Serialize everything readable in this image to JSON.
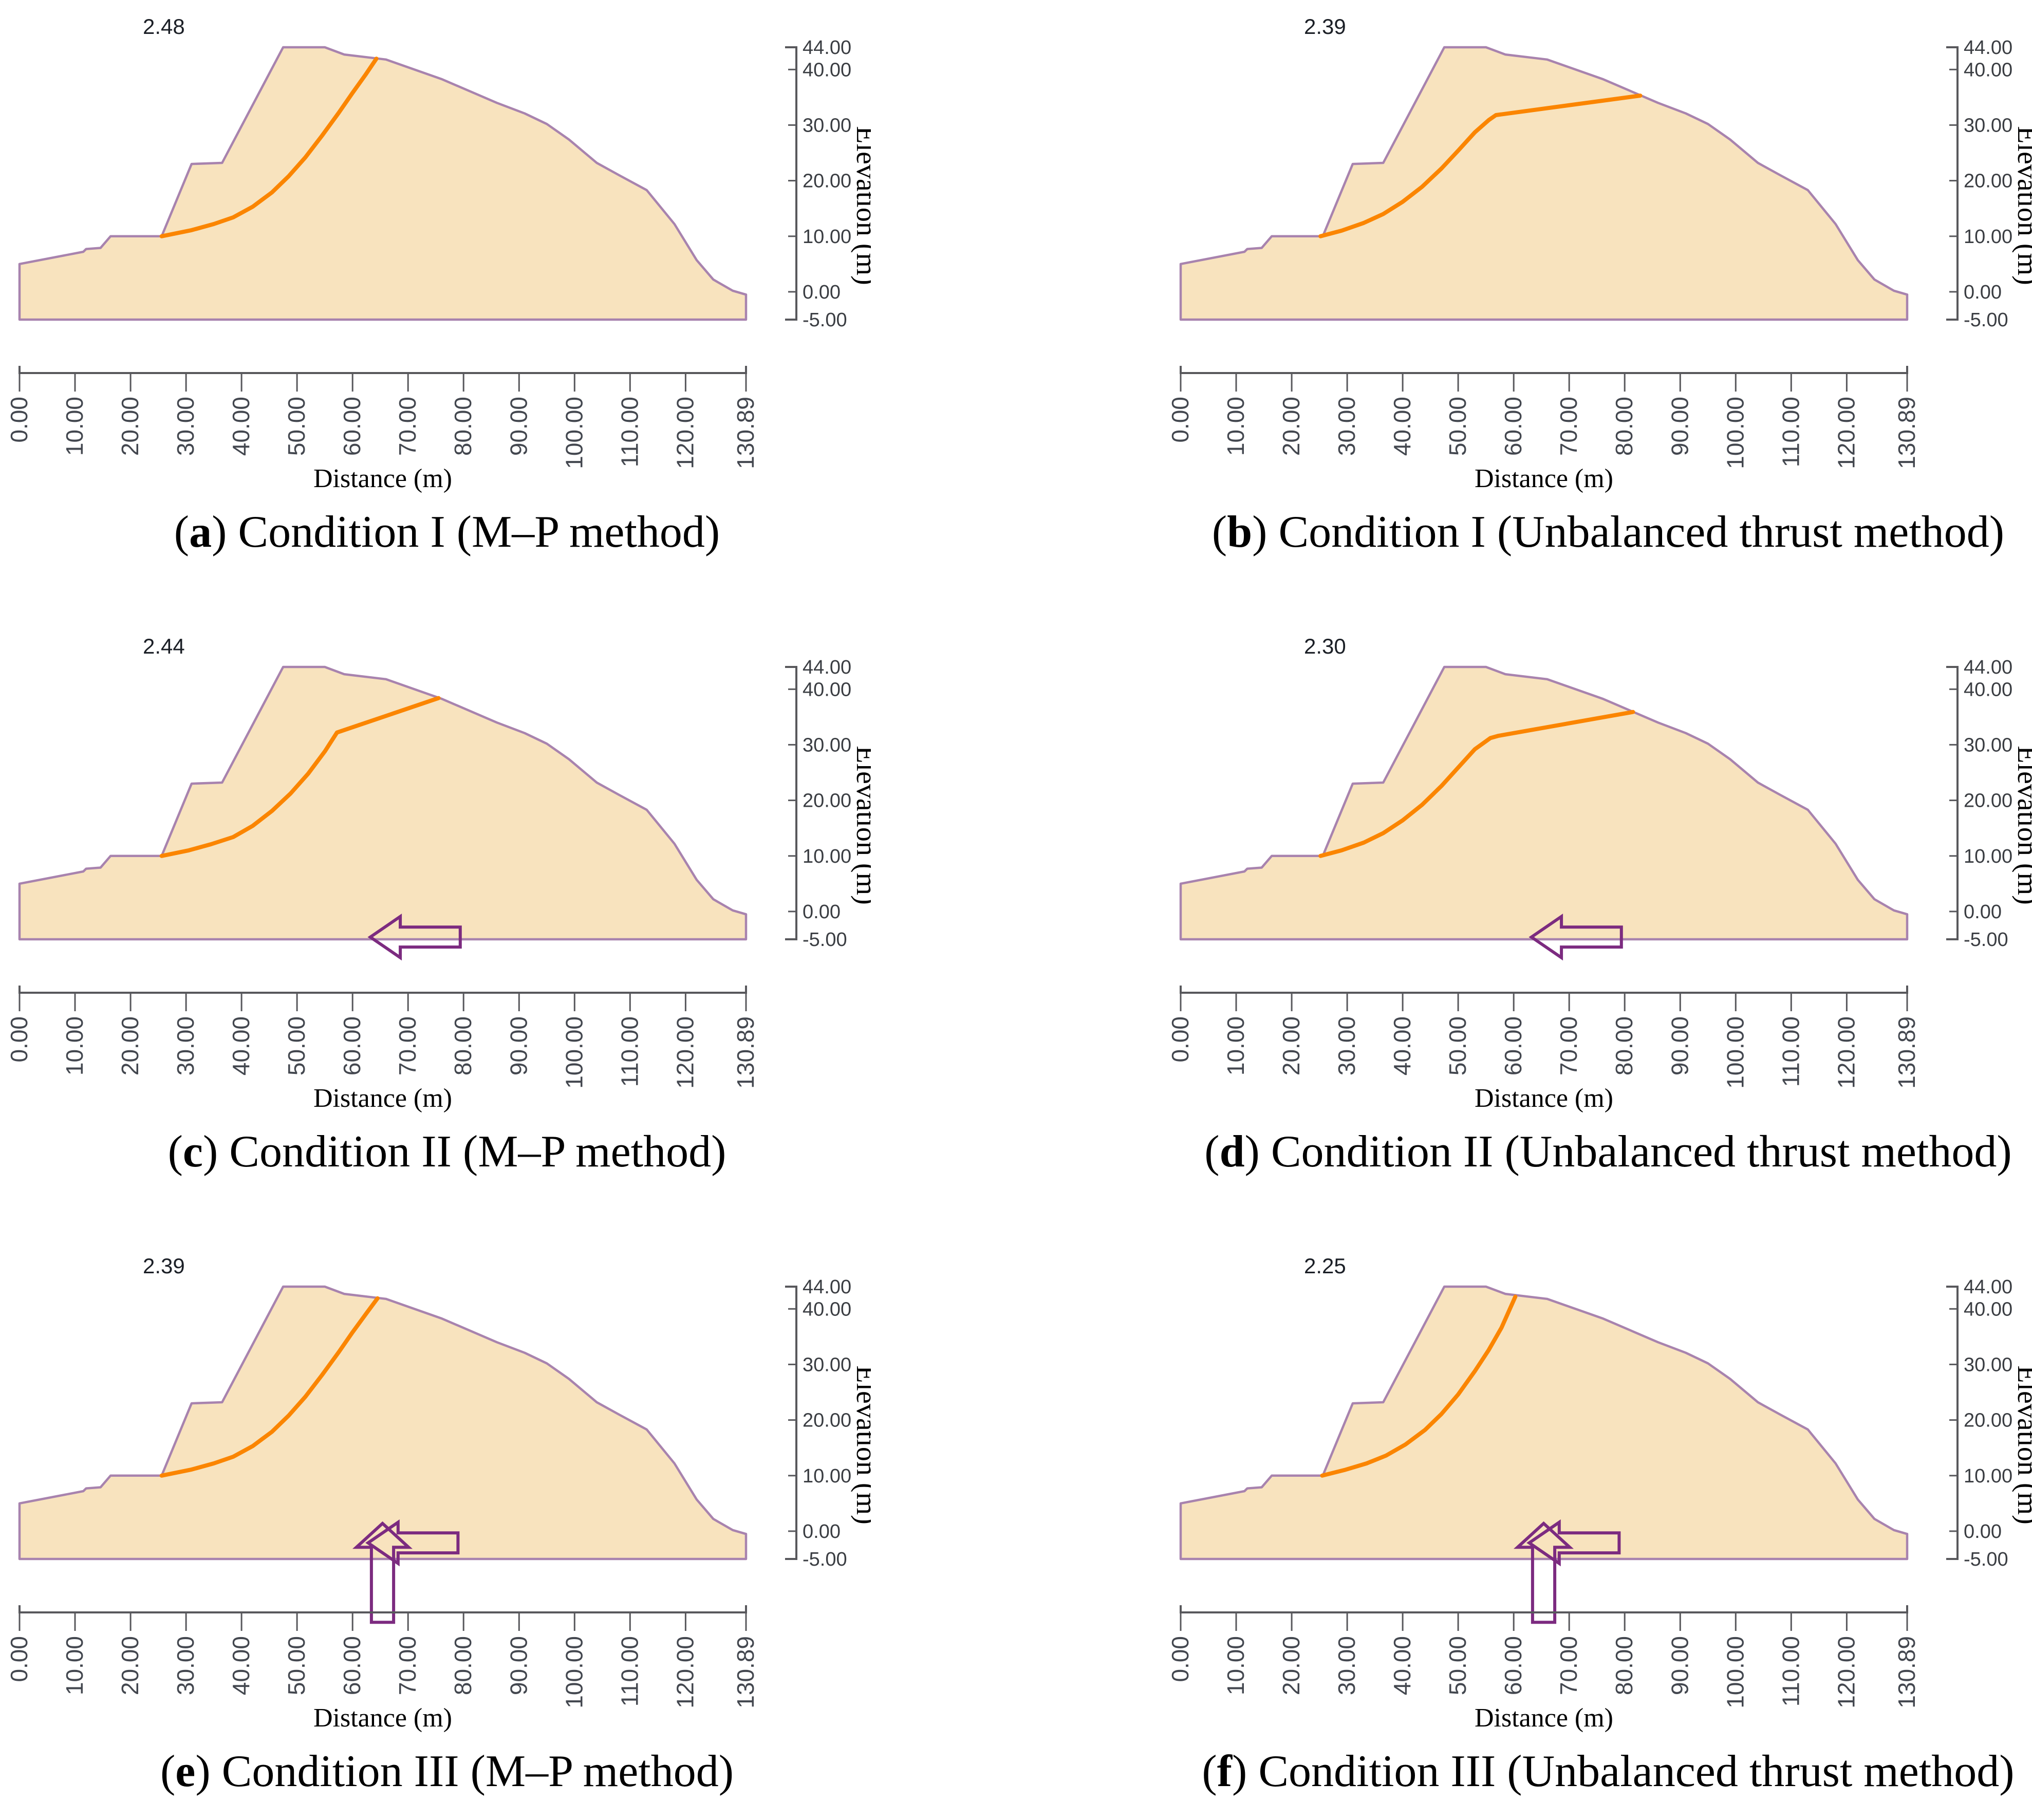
{
  "colors": {
    "slope_fill": "#F8E3BE",
    "slope_outline": "#A883AE",
    "slip_line": "#FB8500",
    "arrow_outline": "#7C2B80",
    "axis_line": "#58585C",
    "tick_label": "#43474F",
    "factor_label": "#1B1F26",
    "caption_text": "#000000"
  },
  "chart_data": {
    "type": "area",
    "xlabel": "Distance (m)",
    "ylabel": "Elevation (m)",
    "xlim": [
      0,
      130.89
    ],
    "ylim": [
      -5,
      44
    ],
    "grid": false,
    "legend": "none",
    "x_ticks": [
      {
        "v": 0,
        "label": "0.00"
      },
      {
        "v": 10,
        "label": "10.00"
      },
      {
        "v": 20,
        "label": "20.00"
      },
      {
        "v": 30,
        "label": "30.00"
      },
      {
        "v": 40,
        "label": "40.00"
      },
      {
        "v": 50,
        "label": "50.00"
      },
      {
        "v": 60,
        "label": "60.00"
      },
      {
        "v": 70,
        "label": "70.00"
      },
      {
        "v": 80,
        "label": "80.00"
      },
      {
        "v": 90,
        "label": "90.00"
      },
      {
        "v": 100,
        "label": "100.00"
      },
      {
        "v": 110,
        "label": "110.00"
      },
      {
        "v": 120,
        "label": "120.00"
      },
      {
        "v": 130.89,
        "label": "130.89"
      }
    ],
    "y_ticks": [
      {
        "v": 44,
        "label": "44.00"
      },
      {
        "v": 40,
        "label": "40.00"
      },
      {
        "v": 30,
        "label": "30.00"
      },
      {
        "v": 20,
        "label": "20.00"
      },
      {
        "v": 10,
        "label": "10.00"
      },
      {
        "v": 0,
        "label": "0.00"
      },
      {
        "v": -5,
        "label": "-5.00"
      }
    ],
    "slope_profile": [
      [
        0,
        -5
      ],
      [
        0,
        5
      ],
      [
        11.5,
        7.2
      ],
      [
        12,
        7.7
      ],
      [
        14.6,
        7.9
      ],
      [
        16.4,
        10
      ],
      [
        25.6,
        10
      ],
      [
        31,
        23
      ],
      [
        36.5,
        23.2
      ],
      [
        47.5,
        44
      ],
      [
        55,
        44
      ],
      [
        58.5,
        42.7
      ],
      [
        66,
        41.8
      ],
      [
        76,
        38.3
      ],
      [
        86,
        34
      ],
      [
        91,
        32.1
      ],
      [
        95,
        30.2
      ],
      [
        99,
        27.4
      ],
      [
        104,
        23.2
      ],
      [
        108,
        21
      ],
      [
        113,
        18.3
      ],
      [
        118,
        12.2
      ],
      [
        122,
        5.7
      ],
      [
        125,
        2.2
      ],
      [
        128.5,
        0.2
      ],
      [
        130.89,
        -0.5
      ],
      [
        130.89,
        -5
      ]
    ],
    "panels": [
      {
        "id": "a",
        "factor_of_safety": "2.48",
        "caption": {
          "open": "(",
          "letter": "a",
          "rest": ") Condition I (M–P method)"
        },
        "arrows": {
          "left": false,
          "up": false
        },
        "slip_surface": [
          [
            25.6,
            10
          ],
          [
            31,
            11.1
          ],
          [
            35,
            12.2
          ],
          [
            38.5,
            13.4
          ],
          [
            42,
            15.3
          ],
          [
            45.5,
            17.9
          ],
          [
            48.5,
            20.8
          ],
          [
            51.5,
            24.2
          ],
          [
            54.5,
            28.1
          ],
          [
            57.5,
            32.2
          ],
          [
            60,
            35.8
          ],
          [
            62.3,
            39
          ],
          [
            64.3,
            41.95
          ]
        ]
      },
      {
        "id": "b",
        "factor_of_safety": "2.39",
        "caption": {
          "open": "(",
          "letter": "b",
          "rest": ") Condition I (Unbalanced thrust method)"
        },
        "arrows": {
          "left": false,
          "up": false
        },
        "slip_surface": [
          [
            25.2,
            10
          ],
          [
            29,
            11
          ],
          [
            33,
            12.4
          ],
          [
            36.5,
            14
          ],
          [
            40,
            16.2
          ],
          [
            43.5,
            18.9
          ],
          [
            47,
            22.2
          ],
          [
            50,
            25.4
          ],
          [
            53,
            28.7
          ],
          [
            55.5,
            30.9
          ],
          [
            56.8,
            31.8
          ],
          [
            82.8,
            35.3
          ]
        ]
      },
      {
        "id": "c",
        "factor_of_safety": "2.44",
        "caption": {
          "open": "(",
          "letter": "c",
          "rest": ") Condition II (M–P method)"
        },
        "arrows": {
          "left": true,
          "up": false
        },
        "slip_surface": [
          [
            25.6,
            10
          ],
          [
            30.5,
            11
          ],
          [
            34.5,
            12.1
          ],
          [
            38.5,
            13.4
          ],
          [
            42,
            15.4
          ],
          [
            45.5,
            18.1
          ],
          [
            48.8,
            21.2
          ],
          [
            52,
            24.8
          ],
          [
            55,
            28.8
          ],
          [
            57.2,
            32.2
          ],
          [
            75.5,
            38.4
          ]
        ]
      },
      {
        "id": "d",
        "factor_of_safety": "2.30",
        "caption": {
          "open": "(",
          "letter": "d",
          "rest": ") Condition II (Unbalanced thrust method)"
        },
        "arrows": {
          "left": true,
          "up": false
        },
        "slip_surface": [
          [
            25.2,
            10
          ],
          [
            29,
            11
          ],
          [
            33,
            12.4
          ],
          [
            36.5,
            14.1
          ],
          [
            40,
            16.4
          ],
          [
            43.5,
            19.2
          ],
          [
            47,
            22.6
          ],
          [
            50,
            25.9
          ],
          [
            53,
            29.2
          ],
          [
            55.8,
            31.2
          ],
          [
            57.2,
            31.6
          ],
          [
            81.5,
            35.9
          ]
        ]
      },
      {
        "id": "e",
        "factor_of_safety": "2.39",
        "caption": {
          "open": "(",
          "letter": "e",
          "rest": ") Condition III (M–P method)"
        },
        "arrows": {
          "left": true,
          "up": true
        },
        "slip_surface": [
          [
            25.6,
            10
          ],
          [
            31,
            11.1
          ],
          [
            35,
            12.2
          ],
          [
            38.5,
            13.4
          ],
          [
            42,
            15.3
          ],
          [
            45.5,
            17.9
          ],
          [
            48.5,
            20.8
          ],
          [
            51.5,
            24.2
          ],
          [
            54.5,
            28.1
          ],
          [
            57.5,
            32.2
          ],
          [
            60,
            35.8
          ],
          [
            62.5,
            39.2
          ],
          [
            64.5,
            41.9
          ]
        ]
      },
      {
        "id": "f",
        "factor_of_safety": "2.25",
        "caption": {
          "open": "(",
          "letter": "f",
          "rest": ") Condition III (Unbalanced thrust method)"
        },
        "arrows": {
          "left": true,
          "up": true
        },
        "slip_surface": [
          [
            25.5,
            10
          ],
          [
            29.5,
            11
          ],
          [
            33.5,
            12.2
          ],
          [
            37,
            13.6
          ],
          [
            40.5,
            15.6
          ],
          [
            44,
            18.2
          ],
          [
            47,
            21.1
          ],
          [
            50,
            24.6
          ],
          [
            53,
            28.8
          ],
          [
            55.5,
            32.6
          ],
          [
            57.8,
            36.6
          ],
          [
            60.3,
            42.2
          ]
        ]
      }
    ]
  }
}
